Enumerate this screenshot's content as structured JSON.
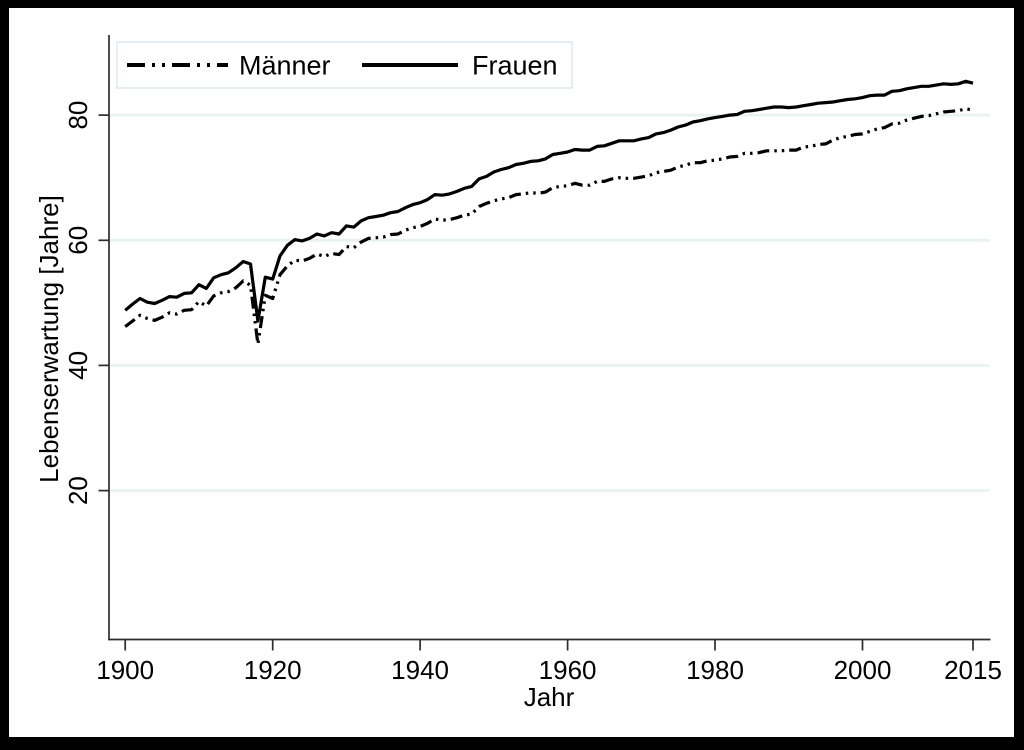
{
  "figure": {
    "frame_color": "#000000",
    "plot_bg": "#ffffff",
    "grid_color": "#e8f2ee",
    "axis_color": "#2d2d2d",
    "line_color": "#000000",
    "legend_border": "#dce9f0"
  },
  "chart_data": {
    "type": "line",
    "title": "",
    "xlabel": "Jahr",
    "ylabel": "Lebenserwartung [Jahre]",
    "x_ticks": [
      1900,
      1920,
      1940,
      1960,
      1980,
      2000,
      2015
    ],
    "y_ticks": [
      20,
      40,
      60,
      80
    ],
    "xlim": [
      1897.8,
      2017.3
    ],
    "ylim": [
      -3.8,
      92.8
    ],
    "grid": "horizontal",
    "legend_position": "top-left",
    "x": [
      1900,
      1901,
      1902,
      1903,
      1904,
      1905,
      1906,
      1907,
      1908,
      1909,
      1910,
      1911,
      1912,
      1913,
      1914,
      1915,
      1916,
      1917,
      1918,
      1919,
      1920,
      1921,
      1922,
      1923,
      1924,
      1925,
      1926,
      1927,
      1928,
      1929,
      1930,
      1931,
      1932,
      1933,
      1934,
      1935,
      1936,
      1937,
      1938,
      1939,
      1940,
      1941,
      1942,
      1943,
      1944,
      1945,
      1946,
      1947,
      1948,
      1949,
      1950,
      1951,
      1952,
      1953,
      1954,
      1955,
      1956,
      1957,
      1958,
      1959,
      1960,
      1961,
      1962,
      1963,
      1964,
      1965,
      1966,
      1967,
      1968,
      1969,
      1970,
      1971,
      1972,
      1973,
      1974,
      1975,
      1976,
      1977,
      1978,
      1979,
      1980,
      1981,
      1982,
      1983,
      1984,
      1985,
      1986,
      1987,
      1988,
      1989,
      1990,
      1991,
      1992,
      1993,
      1994,
      1995,
      1996,
      1997,
      1998,
      1999,
      2000,
      2001,
      2002,
      2003,
      2004,
      2005,
      2006,
      2007,
      2008,
      2009,
      2010,
      2011,
      2012,
      2013,
      2014,
      2015
    ],
    "series": [
      {
        "name": "Männer",
        "style": "dash-dot-dot",
        "values": [
          46.2,
          47.1,
          48.0,
          47.5,
          47.2,
          47.7,
          48.4,
          48.2,
          48.8,
          48.9,
          50.2,
          49.5,
          51.1,
          51.6,
          51.8,
          52.4,
          53.5,
          52.8,
          43.4,
          51.2,
          50.7,
          54.5,
          55.9,
          56.8,
          56.7,
          57.1,
          57.8,
          57.4,
          57.9,
          57.7,
          59.0,
          58.8,
          59.7,
          60.3,
          60.4,
          60.5,
          60.9,
          61.0,
          61.6,
          62.0,
          62.2,
          62.7,
          63.4,
          63.2,
          63.3,
          63.6,
          64.0,
          64.2,
          65.4,
          65.9,
          66.3,
          66.6,
          66.8,
          67.3,
          67.4,
          67.6,
          67.5,
          67.7,
          68.4,
          68.6,
          68.7,
          69.1,
          68.8,
          68.8,
          69.4,
          69.4,
          69.8,
          70.0,
          69.9,
          69.9,
          70.1,
          70.3,
          70.8,
          71.0,
          71.2,
          71.7,
          72.0,
          72.4,
          72.4,
          72.7,
          72.8,
          73.0,
          73.3,
          73.4,
          73.9,
          73.9,
          74.0,
          74.3,
          74.3,
          74.3,
          74.4,
          74.4,
          74.9,
          75.0,
          75.3,
          75.4,
          76.0,
          76.4,
          76.6,
          76.9,
          77.0,
          77.4,
          77.8,
          78.0,
          78.6,
          78.7,
          79.2,
          79.5,
          79.8,
          79.9,
          80.2,
          80.5,
          80.6,
          80.7,
          81.0,
          80.8
        ]
      },
      {
        "name": "Frauen",
        "style": "solid",
        "values": [
          48.8,
          49.8,
          50.7,
          50.1,
          49.9,
          50.4,
          51.0,
          50.9,
          51.5,
          51.6,
          52.9,
          52.3,
          54.0,
          54.5,
          54.8,
          55.6,
          56.6,
          56.2,
          47.1,
          54.1,
          53.8,
          57.5,
          59.2,
          60.1,
          59.9,
          60.3,
          61.0,
          60.7,
          61.2,
          61.0,
          62.3,
          62.1,
          63.1,
          63.6,
          63.8,
          64.0,
          64.4,
          64.6,
          65.2,
          65.7,
          66.0,
          66.5,
          67.3,
          67.2,
          67.4,
          67.8,
          68.3,
          68.6,
          69.8,
          70.2,
          70.9,
          71.3,
          71.6,
          72.1,
          72.3,
          72.6,
          72.7,
          73.0,
          73.7,
          73.9,
          74.1,
          74.5,
          74.4,
          74.4,
          75.0,
          75.1,
          75.5,
          75.9,
          75.9,
          75.9,
          76.2,
          76.4,
          77.0,
          77.2,
          77.6,
          78.1,
          78.4,
          78.9,
          79.1,
          79.4,
          79.6,
          79.8,
          80.0,
          80.1,
          80.6,
          80.7,
          80.9,
          81.1,
          81.3,
          81.3,
          81.2,
          81.3,
          81.5,
          81.7,
          81.9,
          82.0,
          82.1,
          82.3,
          82.5,
          82.6,
          82.8,
          83.1,
          83.2,
          83.2,
          83.8,
          83.9,
          84.2,
          84.4,
          84.6,
          84.6,
          84.8,
          85.0,
          84.9,
          85.0,
          85.4,
          85.1
        ]
      }
    ]
  }
}
